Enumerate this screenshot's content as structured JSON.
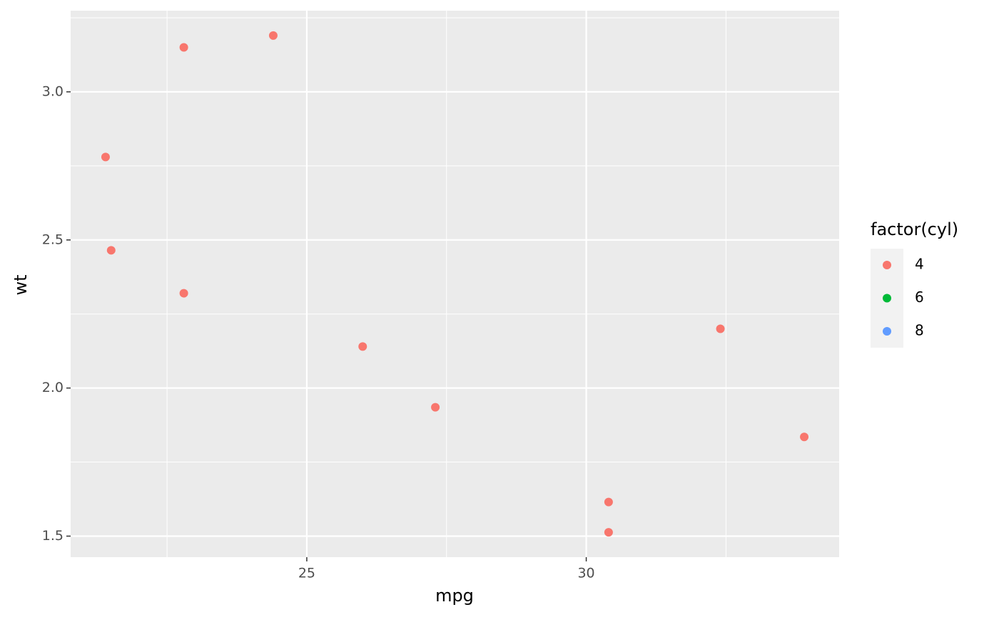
{
  "chart_data": {
    "type": "scatter",
    "x_label": "mpg",
    "y_label": "wt",
    "legend_title": "factor(cyl)",
    "series": [
      {
        "name": "4",
        "color": "#F8766D",
        "x": [
          22.8,
          24.4,
          22.8,
          32.4,
          30.4,
          33.9,
          21.5,
          27.3,
          26.0,
          30.4,
          21.4
        ],
        "values": [
          2.32,
          3.19,
          3.15,
          2.2,
          1.615,
          1.835,
          2.465,
          1.935,
          2.14,
          1.513,
          2.78
        ]
      },
      {
        "name": "6",
        "color": "#00BA38",
        "x": [],
        "values": []
      },
      {
        "name": "8",
        "color": "#619CFF",
        "x": [],
        "values": []
      }
    ],
    "xlim": [
      20.775,
      34.525
    ],
    "ylim": [
      1.429,
      3.274
    ],
    "xticks": [
      25,
      30
    ],
    "yticks": [
      {
        "value": 1.5,
        "label": "1.5"
      },
      {
        "value": 2,
        "label": "2.0"
      },
      {
        "value": 2.5,
        "label": "2.5"
      },
      {
        "value": 3,
        "label": "3.0"
      }
    ],
    "x_minor_grid": [
      22.5,
      27.5,
      32.5
    ],
    "y_minor_grid": [
      1.75,
      2.25,
      2.75,
      3.25
    ],
    "grid": true,
    "legend_position": "right"
  }
}
